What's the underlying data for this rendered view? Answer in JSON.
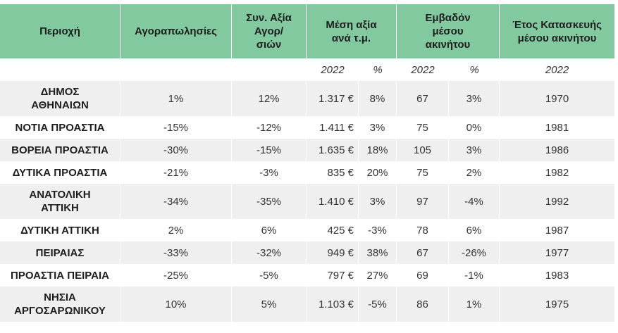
{
  "headers": {
    "region": "Περιοχή",
    "transactions": "Αγοραπωλησίες",
    "total_value": "Συν. Αξία Αγορ/ σιών",
    "avg_value": "Μέση αξία ανά τ.μ.",
    "area": "Εμβαδόν μέσου ακινήτου",
    "year": "Έτος Κατασκευής μέσου ακινήτου"
  },
  "subheaders": {
    "avg_value_year": "2022",
    "avg_value_pct": "%",
    "area_year": "2022",
    "area_pct": "%",
    "year_year": "2022"
  },
  "rows": [
    {
      "region": "ΔΗΜΟΣ ΑΘΗΝΑΙΩΝ",
      "transactions": "1%",
      "total_value": "12%",
      "avg_value": "1.317 €",
      "avg_pct": "8%",
      "area": "67",
      "area_pct": "3%",
      "year": "1970"
    },
    {
      "region": "ΝΟΤΙΑ ΠΡΟΑΣΤΙΑ",
      "transactions": "-15%",
      "total_value": "-12%",
      "avg_value": "1.411 €",
      "avg_pct": "3%",
      "area": "75",
      "area_pct": "0%",
      "year": "1981"
    },
    {
      "region": "ΒΟΡΕΙΑ ΠΡΟΑΣΤΙΑ",
      "transactions": "-30%",
      "total_value": "-15%",
      "avg_value": "1.635 €",
      "avg_pct": "18%",
      "area": "105",
      "area_pct": "3%",
      "year": "1986"
    },
    {
      "region": "ΔΥΤΙΚΑ ΠΡΟΑΣΤΙΑ",
      "transactions": "-21%",
      "total_value": "-3%",
      "avg_value": "835 €",
      "avg_pct": "20%",
      "area": "75",
      "area_pct": "2%",
      "year": "1982"
    },
    {
      "region": "ΑΝΑΤΟΛΙΚΗ ΑΤΤΙΚΗ",
      "transactions": "-34%",
      "total_value": "-35%",
      "avg_value": "1.410 €",
      "avg_pct": "3%",
      "area": "97",
      "area_pct": "-4%",
      "year": "1992"
    },
    {
      "region": "ΔΥΤΙΚΗ ΑΤΤΙΚΗ",
      "transactions": "2%",
      "total_value": "6%",
      "avg_value": "425 €",
      "avg_pct": "-3%",
      "area": "78",
      "area_pct": "6%",
      "year": "1987"
    },
    {
      "region": "ΠΕΙΡΑΙΑΣ",
      "transactions": "-33%",
      "total_value": "-32%",
      "avg_value": "949 €",
      "avg_pct": "38%",
      "area": "67",
      "area_pct": "-26%",
      "year": "1977"
    },
    {
      "region": "ΠΡΟΑΣΤΙΑ ΠΕΙΡΑΙΑ",
      "transactions": "-25%",
      "total_value": "-5%",
      "avg_value": "797 €",
      "avg_pct": "27%",
      "area": "69",
      "area_pct": "-1%",
      "year": "1983"
    },
    {
      "region": "ΝΗΣΙΑ ΑΡΓΟΣΑΡΩΝΙΚΟΥ",
      "transactions": "10%",
      "total_value": "5%",
      "avg_value": "1.103 €",
      "avg_pct": "-5%",
      "area": "86",
      "area_pct": "1%",
      "year": "1975"
    }
  ]
}
